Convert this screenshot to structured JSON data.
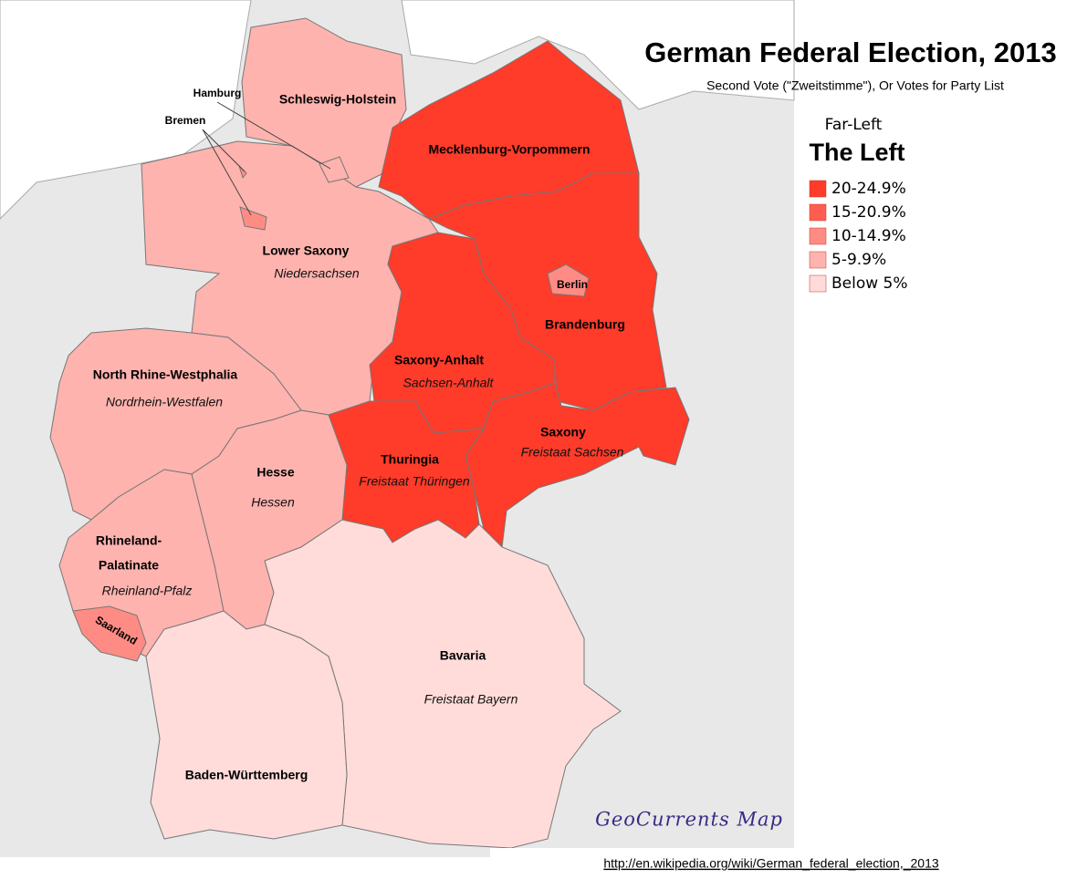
{
  "title": "German Federal Election, 2013",
  "subtitle": "Second Vote (\"Zweitstimme\"), Or Votes for Party List",
  "legend": {
    "kicker": "Far-Left",
    "heading": "The Left",
    "items": [
      {
        "label": "20-24.9%",
        "color": "#ff3b2a"
      },
      {
        "label": "15-20.9%",
        "color": "#ff5d52"
      },
      {
        "label": "10-14.9%",
        "color": "#ff8c84"
      },
      {
        "label": "5-9.9%",
        "color": "#ffb3ae"
      },
      {
        "label": "Below 5%",
        "color": "#ffdcd9"
      }
    ]
  },
  "regions": [
    {
      "name": "Schleswig-Holstein",
      "color": "#ffb3ae"
    },
    {
      "name": "Hamburg",
      "color": "#ffb3ae"
    },
    {
      "name": "Bremen",
      "color": "#ff8c84"
    },
    {
      "name": "Mecklenburg-Vorpommern",
      "color": "#ff3b2a"
    },
    {
      "name": "Lower Saxony",
      "local": "Niedersachsen",
      "color": "#ffb3ae"
    },
    {
      "name": "Berlin",
      "color": "#ff8c84"
    },
    {
      "name": "Brandenburg",
      "color": "#ff3b2a"
    },
    {
      "name": "Saxony-Anhalt",
      "local": "Sachsen-Anhalt",
      "color": "#ff3b2a"
    },
    {
      "name": "North Rhine-Westphalia",
      "local": "Nordrhein-Westfalen",
      "color": "#ffb3ae"
    },
    {
      "name": "Saxony",
      "local": "Freistaat Sachsen",
      "color": "#ff3b2a"
    },
    {
      "name": "Thuringia",
      "local": "Freistaat Thüringen",
      "color": "#ff3b2a"
    },
    {
      "name": "Hesse",
      "local": "Hessen",
      "color": "#ffb3ae"
    },
    {
      "name": [
        "Rhineland-",
        "Palatinate"
      ],
      "local": "Rheinland-Pfalz",
      "color": "#ffb3ae"
    },
    {
      "name": "Saarland",
      "color": "#ff8c84"
    },
    {
      "name": "Bavaria",
      "local": "Freistaat Bayern",
      "color": "#ffdcd9"
    },
    {
      "name": "Baden-Württemberg",
      "color": "#ffdcd9"
    }
  ],
  "credit": "GeoCurrents Map",
  "source": "http://en.wikipedia.org/wiki/German_federal_election,_2013"
}
